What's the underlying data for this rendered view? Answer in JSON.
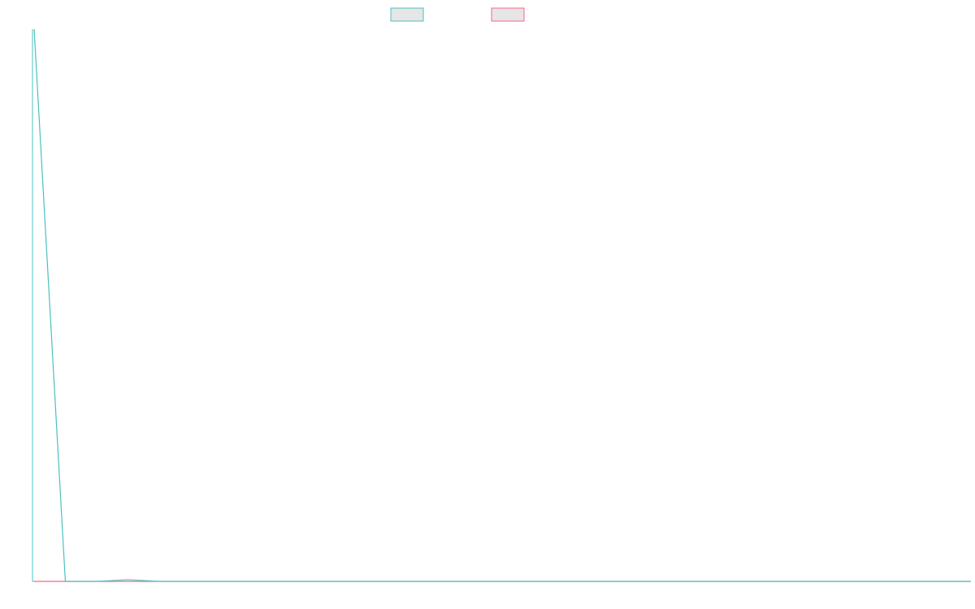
{
  "chart_data": {
    "type": "line",
    "title": "",
    "xlabel": "",
    "ylabel": "",
    "grid": false,
    "legend": "top-center",
    "x": [
      0,
      1,
      2,
      3,
      4,
      5,
      6,
      7,
      8,
      9,
      10,
      11,
      12,
      13,
      14,
      15,
      16,
      17,
      18,
      19,
      20,
      21,
      22,
      23,
      24,
      25,
      26,
      27,
      28,
      29,
      30
    ],
    "xlim": [
      0,
      30
    ],
    "ylim": [
      0,
      100
    ],
    "series": [
      {
        "color": "#4bc0c0",
        "fill": "#e6e6e6",
        "values": [
          100,
          0,
          0,
          0.3,
          0,
          0,
          0,
          0,
          0,
          0,
          0,
          0,
          0,
          0,
          0,
          0,
          0,
          0,
          0,
          0,
          0,
          0,
          0,
          0,
          0,
          0,
          0,
          0,
          0,
          0,
          0
        ]
      },
      {
        "color": "#ff6384",
        "fill": "#e6e6e6",
        "values": [
          0,
          0,
          0,
          0,
          0,
          0,
          0,
          0,
          0,
          0,
          0,
          0,
          0,
          0,
          0,
          0,
          0,
          0,
          0,
          0,
          0,
          0,
          0,
          0,
          0,
          0,
          0,
          0,
          0,
          0,
          0
        ]
      }
    ]
  }
}
